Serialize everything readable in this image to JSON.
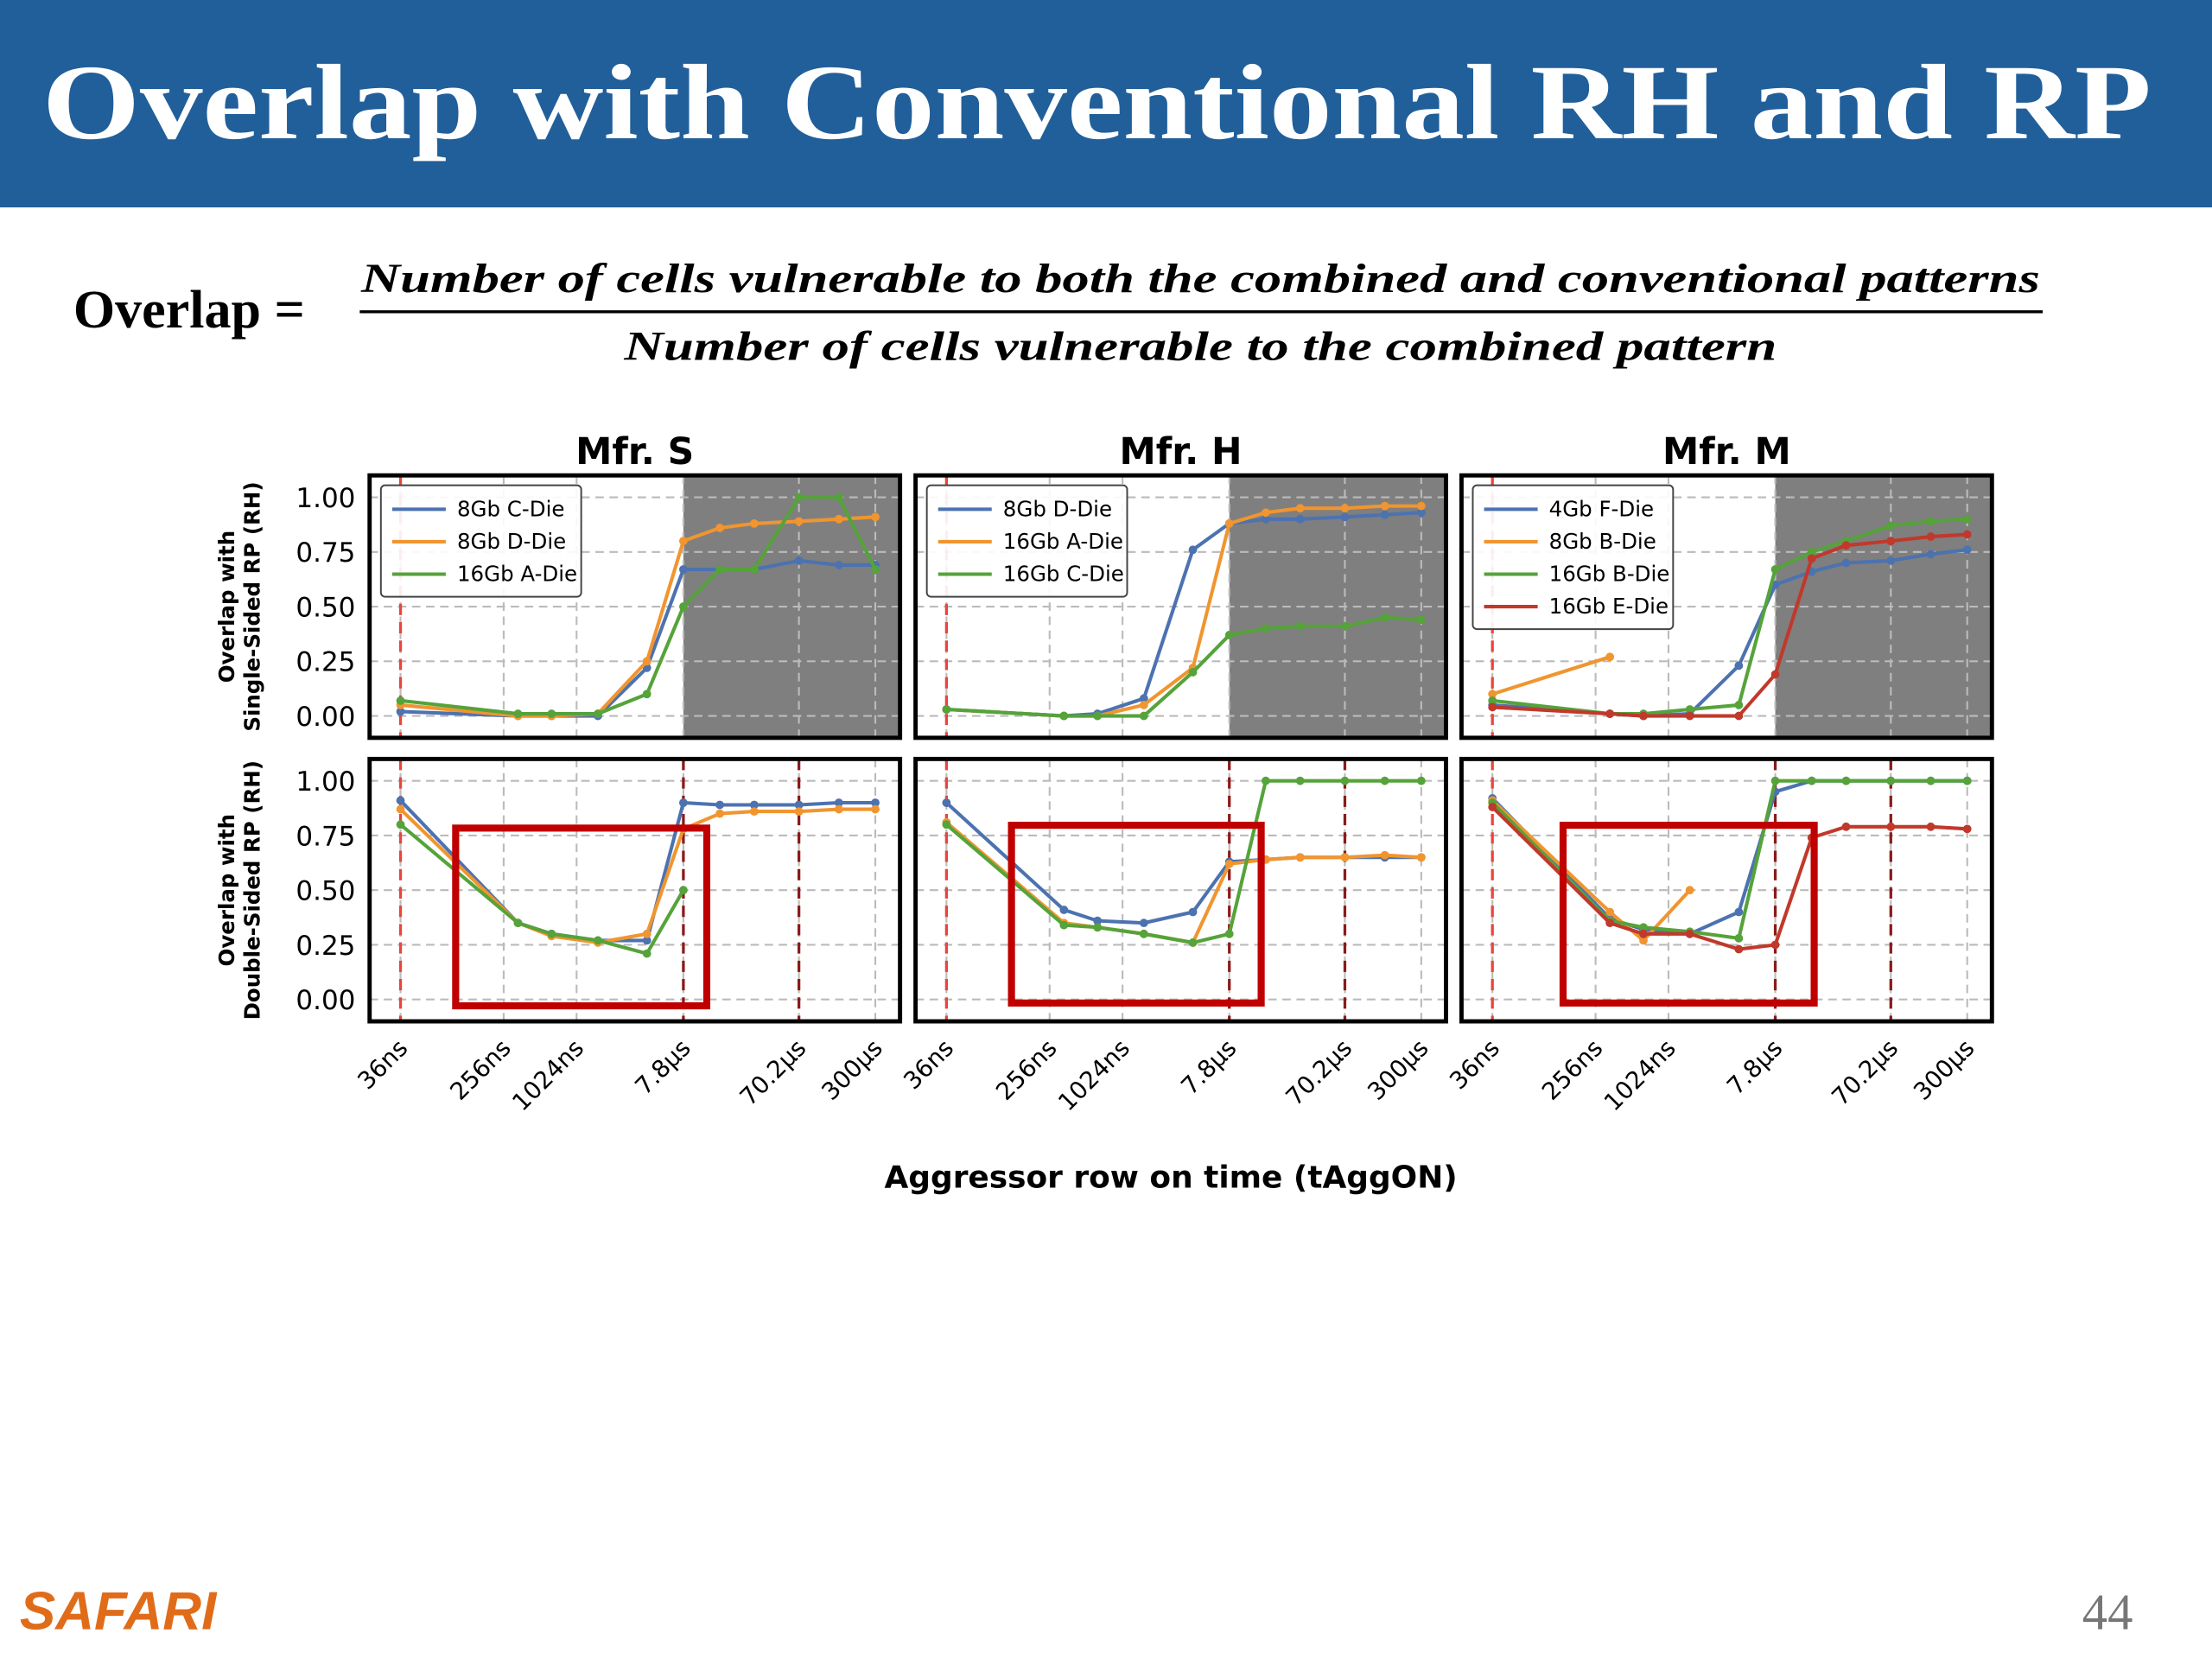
{
  "slide": {
    "title": "Overlap with Conventional RH and RP",
    "formula_lhs": "Overlap =",
    "numerator": "Number of cells vulnerable to both the combined and conventional patterns",
    "denominator": "Number of cells vulnerable to the combined pattern",
    "xlabel": "Aggressor row on time (tAggON)",
    "logo": "SAFARI",
    "page_number": 44
  },
  "chart_data": [
    {
      "type": "line",
      "title": "Mfr. S",
      "ylabel": [
        "Overlap with",
        "Single-Sided RP (RH)"
      ],
      "log_x": true,
      "grid": true,
      "legend": "upper left",
      "yticklabels": true,
      "xticklabels": false,
      "shade_from": 7800,
      "x": [
        36,
        336,
        636,
        1536,
        3900,
        7800,
        15600,
        30000,
        70200,
        150000,
        300000
      ],
      "xlim": [
        20,
        480000
      ],
      "ylim": [
        -0.1,
        1.1
      ],
      "xticks": [
        {
          "value": 36,
          "label": "36ns"
        },
        {
          "value": 256,
          "label": "256ns"
        },
        {
          "value": 1024,
          "label": "1024ns"
        },
        {
          "value": 7800,
          "label": "7.8µs"
        },
        {
          "value": 70200,
          "label": "70.2µs"
        },
        {
          "value": 300000,
          "label": "300µs"
        }
      ],
      "yticks": [
        {
          "value": 0,
          "label": "0.00"
        },
        {
          "value": 0.25,
          "label": "0.25"
        },
        {
          "value": 0.5,
          "label": "0.50"
        },
        {
          "value": 0.75,
          "label": "0.75"
        },
        {
          "value": 1,
          "label": "1.00"
        }
      ],
      "vlines": [
        {
          "x": 36,
          "color": "#e8453c"
        }
      ],
      "series": [
        {
          "name": "8Gb C-Die",
          "color": "#4c72b0",
          "values": [
            0.02,
            0.0,
            0.0,
            0.0,
            0.22,
            0.67,
            0.67,
            0.67,
            0.71,
            0.69,
            0.69
          ]
        },
        {
          "name": "8Gb D-Die",
          "color": "#f0952f",
          "values": [
            0.05,
            0.0,
            0.0,
            0.01,
            0.25,
            0.8,
            0.86,
            0.88,
            0.89,
            0.9,
            0.91
          ]
        },
        {
          "name": "16Gb A-Die",
          "color": "#55a33a",
          "values": [
            0.07,
            0.01,
            0.01,
            0.01,
            0.1,
            0.5,
            0.67,
            0.67,
            1.0,
            1.0,
            0.67
          ]
        }
      ]
    },
    {
      "type": "line",
      "title": "Mfr. H",
      "log_x": true,
      "grid": true,
      "legend": "upper left",
      "yticklabels": false,
      "xticklabels": false,
      "shade_from": 7800,
      "x": [
        36,
        336,
        636,
        1536,
        3900,
        7800,
        15600,
        30000,
        70200,
        150000,
        300000
      ],
      "xlim": [
        20,
        480000
      ],
      "ylim": [
        -0.1,
        1.1
      ],
      "xticks": [
        {
          "value": 36,
          "label": "36ns"
        },
        {
          "value": 256,
          "label": "256ns"
        },
        {
          "value": 1024,
          "label": "1024ns"
        },
        {
          "value": 7800,
          "label": "7.8µs"
        },
        {
          "value": 70200,
          "label": "70.2µs"
        },
        {
          "value": 300000,
          "label": "300µs"
        }
      ],
      "yticks": [
        {
          "value": 0,
          "label": "0.00"
        },
        {
          "value": 0.25,
          "label": "0.25"
        },
        {
          "value": 0.5,
          "label": "0.50"
        },
        {
          "value": 0.75,
          "label": "0.75"
        },
        {
          "value": 1,
          "label": "1.00"
        }
      ],
      "vlines": [
        {
          "x": 36,
          "color": "#e8453c"
        }
      ],
      "series": [
        {
          "name": "8Gb D-Die",
          "color": "#4c72b0",
          "values": [
            0.03,
            0.0,
            0.01,
            0.08,
            0.76,
            0.88,
            0.9,
            0.9,
            0.91,
            0.92,
            0.93
          ]
        },
        {
          "name": "16Gb A-Die",
          "color": "#f0952f",
          "values": [
            0.03,
            0.0,
            0.0,
            0.05,
            0.22,
            0.88,
            0.93,
            0.95,
            0.95,
            0.96,
            0.96
          ]
        },
        {
          "name": "16Gb C-Die",
          "color": "#55a33a",
          "values": [
            0.03,
            0.0,
            0.0,
            0.0,
            0.2,
            0.37,
            0.4,
            0.41,
            0.41,
            0.45,
            0.44
          ]
        }
      ]
    },
    {
      "type": "line",
      "title": "Mfr. M",
      "log_x": true,
      "grid": true,
      "legend": "upper left",
      "yticklabels": false,
      "xticklabels": false,
      "shade_from": 7800,
      "x": [
        36,
        336,
        636,
        1536,
        3900,
        7800,
        15600,
        30000,
        70200,
        150000,
        300000
      ],
      "xlim": [
        20,
        480000
      ],
      "ylim": [
        -0.1,
        1.1
      ],
      "xticks": [
        {
          "value": 36,
          "label": "36ns"
        },
        {
          "value": 256,
          "label": "256ns"
        },
        {
          "value": 1024,
          "label": "1024ns"
        },
        {
          "value": 7800,
          "label": "7.8µs"
        },
        {
          "value": 70200,
          "label": "70.2µs"
        },
        {
          "value": 300000,
          "label": "300µs"
        }
      ],
      "yticks": [
        {
          "value": 0,
          "label": "0.00"
        },
        {
          "value": 0.25,
          "label": "0.25"
        },
        {
          "value": 0.5,
          "label": "0.50"
        },
        {
          "value": 0.75,
          "label": "0.75"
        },
        {
          "value": 1,
          "label": "1.00"
        }
      ],
      "vlines": [
        {
          "x": 36,
          "color": "#e8453c"
        }
      ],
      "series": [
        {
          "name": "4Gb F-Die",
          "color": "#4c72b0",
          "values": [
            0.05,
            0.01,
            0.0,
            0.01,
            0.23,
            0.6,
            0.66,
            0.7,
            0.71,
            0.74,
            0.76
          ]
        },
        {
          "name": "8Gb B-Die",
          "color": "#f0952f",
          "values": [
            0.1,
            0.27,
            null,
            null,
            null,
            null,
            null,
            null,
            null,
            null,
            null
          ]
        },
        {
          "name": "16Gb B-Die",
          "color": "#55a33a",
          "values": [
            0.07,
            0.01,
            0.01,
            0.03,
            0.05,
            0.67,
            0.75,
            0.8,
            0.87,
            0.89,
            0.9
          ]
        },
        {
          "name": "16Gb E-Die",
          "color": "#c0392b",
          "values": [
            0.04,
            0.01,
            0.0,
            0.0,
            0.0,
            0.19,
            0.72,
            0.78,
            0.8,
            0.82,
            0.83
          ]
        }
      ]
    },
    {
      "type": "line",
      "ylabel": [
        "Overlap with",
        "Double-Sided RP (RH)"
      ],
      "log_x": true,
      "grid": true,
      "yticklabels": true,
      "xticklabels": true,
      "x": [
        36,
        336,
        636,
        1536,
        3900,
        7800,
        15600,
        30000,
        70200,
        150000,
        300000
      ],
      "xlim": [
        20,
        480000
      ],
      "ylim": [
        -0.1,
        1.1
      ],
      "xticks": [
        {
          "value": 36,
          "label": "36ns"
        },
        {
          "value": 256,
          "label": "256ns"
        },
        {
          "value": 1024,
          "label": "1024ns"
        },
        {
          "value": 7800,
          "label": "7.8µs"
        },
        {
          "value": 70200,
          "label": "70.2µs"
        },
        {
          "value": 300000,
          "label": "300µs"
        }
      ],
      "yticks": [
        {
          "value": 0,
          "label": "0.00"
        },
        {
          "value": 0.25,
          "label": "0.25"
        },
        {
          "value": 0.5,
          "label": "0.50"
        },
        {
          "value": 0.75,
          "label": "0.75"
        },
        {
          "value": 1,
          "label": "1.00"
        }
      ],
      "vlines": [
        {
          "x": 36,
          "color": "#e8453c"
        },
        {
          "x": 7800,
          "color": "#8b1a1a"
        },
        {
          "x": 70200,
          "color": "#8b1a1a"
        }
      ],
      "series": [
        {
          "color": "#4c72b0",
          "values": [
            0.91,
            0.35,
            0.3,
            0.27,
            0.27,
            0.9,
            0.89,
            0.89,
            0.89,
            0.9,
            0.9
          ]
        },
        {
          "color": "#f0952f",
          "values": [
            0.87,
            0.35,
            0.29,
            0.26,
            0.3,
            0.78,
            0.85,
            0.86,
            0.86,
            0.87,
            0.87
          ]
        },
        {
          "color": "#55a33a",
          "values": [
            0.8,
            0.35,
            0.3,
            0.27,
            0.21,
            0.5,
            null,
            null,
            null,
            null,
            null
          ]
        }
      ]
    },
    {
      "type": "line",
      "log_x": true,
      "grid": true,
      "yticklabels": false,
      "xticklabels": true,
      "x": [
        36,
        336,
        636,
        1536,
        3900,
        7800,
        15600,
        30000,
        70200,
        150000,
        300000
      ],
      "xlim": [
        20,
        480000
      ],
      "ylim": [
        -0.1,
        1.1
      ],
      "xticks": [
        {
          "value": 36,
          "label": "36ns"
        },
        {
          "value": 256,
          "label": "256ns"
        },
        {
          "value": 1024,
          "label": "1024ns"
        },
        {
          "value": 7800,
          "label": "7.8µs"
        },
        {
          "value": 70200,
          "label": "70.2µs"
        },
        {
          "value": 300000,
          "label": "300µs"
        }
      ],
      "yticks": [
        {
          "value": 0,
          "label": "0.00"
        },
        {
          "value": 0.25,
          "label": "0.25"
        },
        {
          "value": 0.5,
          "label": "0.50"
        },
        {
          "value": 0.75,
          "label": "0.75"
        },
        {
          "value": 1,
          "label": "1.00"
        }
      ],
      "vlines": [
        {
          "x": 36,
          "color": "#e8453c"
        },
        {
          "x": 7800,
          "color": "#8b1a1a"
        },
        {
          "x": 70200,
          "color": "#8b1a1a"
        }
      ],
      "series": [
        {
          "color": "#4c72b0",
          "values": [
            0.9,
            0.41,
            0.36,
            0.35,
            0.4,
            0.63,
            0.64,
            0.65,
            0.65,
            0.65,
            0.65
          ]
        },
        {
          "color": "#f0952f",
          "values": [
            0.81,
            0.35,
            0.33,
            0.3,
            0.26,
            0.62,
            0.64,
            0.65,
            0.65,
            0.66,
            0.65
          ]
        },
        {
          "color": "#55a33a",
          "values": [
            0.8,
            0.34,
            0.33,
            0.3,
            0.26,
            0.3,
            1.0,
            1.0,
            1.0,
            1.0,
            1.0
          ]
        }
      ]
    },
    {
      "type": "line",
      "log_x": true,
      "grid": true,
      "yticklabels": false,
      "xticklabels": true,
      "x": [
        36,
        336,
        636,
        1536,
        3900,
        7800,
        15600,
        30000,
        70200,
        150000,
        300000
      ],
      "xlim": [
        20,
        480000
      ],
      "ylim": [
        -0.1,
        1.1
      ],
      "xticks": [
        {
          "value": 36,
          "label": "36ns"
        },
        {
          "value": 256,
          "label": "256ns"
        },
        {
          "value": 1024,
          "label": "1024ns"
        },
        {
          "value": 7800,
          "label": "7.8µs"
        },
        {
          "value": 70200,
          "label": "70.2µs"
        },
        {
          "value": 300000,
          "label": "300µs"
        }
      ],
      "yticks": [
        {
          "value": 0,
          "label": "0.00"
        },
        {
          "value": 0.25,
          "label": "0.25"
        },
        {
          "value": 0.5,
          "label": "0.50"
        },
        {
          "value": 0.75,
          "label": "0.75"
        },
        {
          "value": 1,
          "label": "1.00"
        }
      ],
      "vlines": [
        {
          "x": 36,
          "color": "#e8453c"
        },
        {
          "x": 7800,
          "color": "#8b1a1a"
        },
        {
          "x": 70200,
          "color": "#8b1a1a"
        }
      ],
      "series": [
        {
          "color": "#4c72b0",
          "values": [
            0.92,
            0.37,
            0.32,
            0.3,
            0.4,
            0.95,
            1.0,
            1.0,
            1.0,
            1.0,
            1.0
          ]
        },
        {
          "color": "#f0952f",
          "values": [
            0.91,
            0.4,
            0.27,
            0.5,
            null,
            null,
            null,
            null,
            null,
            null,
            null
          ]
        },
        {
          "color": "#55a33a",
          "values": [
            0.9,
            0.36,
            0.33,
            0.31,
            0.28,
            1.0,
            1.0,
            1.0,
            1.0,
            1.0,
            1.0
          ]
        },
        {
          "color": "#c0392b",
          "values": [
            0.88,
            0.35,
            0.3,
            0.3,
            0.23,
            0.25,
            0.74,
            0.79,
            0.79,
            0.79,
            0.78
          ]
        }
      ]
    }
  ]
}
